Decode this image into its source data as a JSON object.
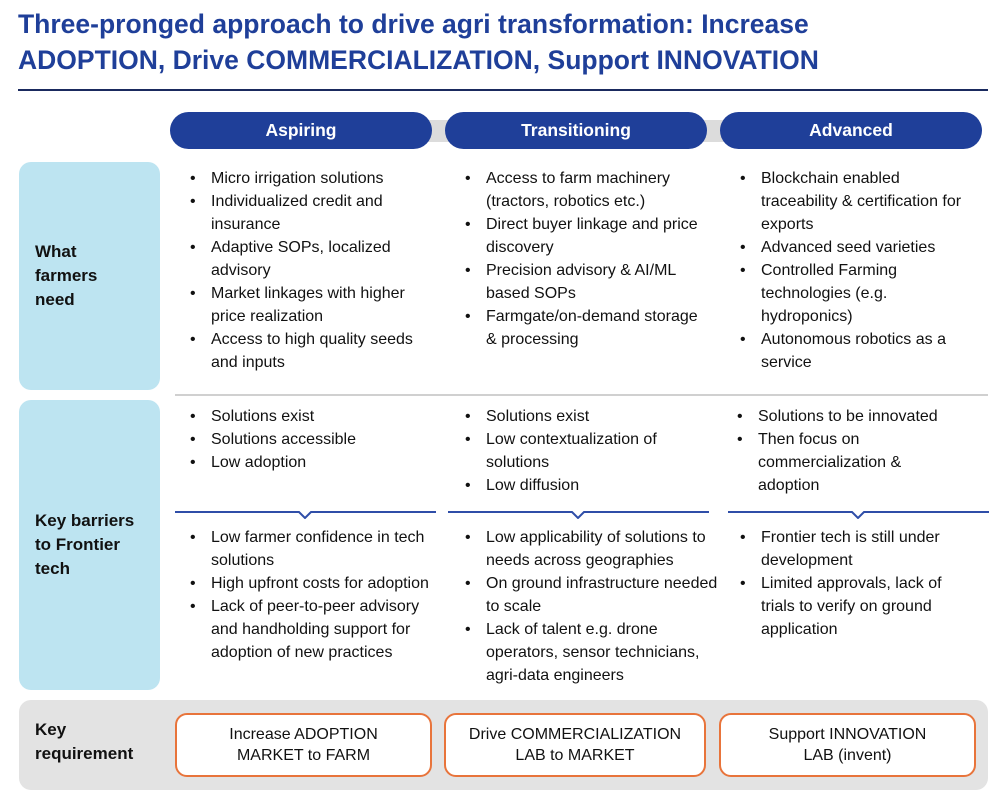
{
  "title": {
    "line1": "Three-pronged approach to drive agri transformation: Increase",
    "line2": "ADOPTION, Drive COMMERCIALIZATION, Support INNOVATION"
  },
  "stages": [
    "Aspiring",
    "Transitioning",
    "Advanced"
  ],
  "rows": {
    "needs_label": [
      "What",
      "farmers",
      "need"
    ],
    "barriers_label": [
      "Key barriers",
      "to Frontier",
      "tech"
    ],
    "req_label": [
      "Key",
      "requirement"
    ]
  },
  "needs": [
    [
      "Micro irrigation solutions",
      "Individualized credit and insurance",
      "Adaptive SOPs, localized advisory",
      "Market linkages with higher price realization",
      "Access to high quality seeds and inputs"
    ],
    [
      "Access to farm machinery (tractors, robotics etc.)",
      "Direct buyer linkage and price discovery",
      "Precision advisory & AI/ML based SOPs",
      "Farmgate/on-demand storage & processing"
    ],
    [
      "Blockchain enabled traceability & certification for exports",
      "Advanced seed varieties",
      "Controlled Farming technologies (e.g. hydroponics)",
      "Autonomous robotics as a service"
    ]
  ],
  "status": [
    [
      "Solutions exist",
      "Solutions accessible",
      "Low adoption"
    ],
    [
      "Solutions exist",
      "Low contextualization of solutions",
      "Low diffusion"
    ],
    [
      "Solutions to be innovated",
      "Then focus on commercialization & adoption"
    ]
  ],
  "barriers": [
    [
      "Low farmer confidence in tech solutions",
      "High upfront costs for adoption",
      "Lack of peer-to-peer advisory and handholding support for adoption of new practices"
    ],
    [
      "Low applicability of solutions to needs across geographies",
      "On ground infrastructure needed to scale",
      "Lack of talent e.g. drone operators, sensor technicians, agri-data engineers"
    ],
    [
      "Frontier tech is still under development",
      "Limited approvals, lack of trials to verify on ground application"
    ]
  ],
  "requirements": [
    [
      "Increase ADOPTION",
      "MARKET to FARM"
    ],
    [
      "Drive COMMERCIALIZATION",
      "LAB to MARKET"
    ],
    [
      "Support INNOVATION",
      "LAB (invent)"
    ]
  ],
  "colors": {
    "navy": "#1f3f99",
    "light_blue": "#bde4f1",
    "orange": "#e8743b",
    "gray": "#e3e3e3"
  }
}
